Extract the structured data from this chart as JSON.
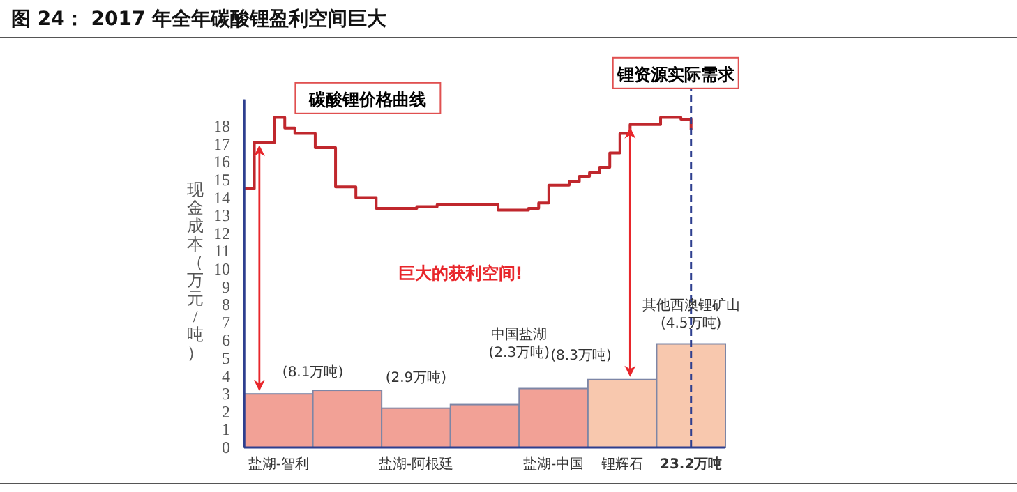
{
  "chart_data": [
    {
      "type": "bar",
      "title": "图 24： 2017 年全年碳酸锂盈利空间巨大",
      "ylabel": "现金成本（万元/吨）",
      "categories": [
        "盐湖-智利",
        null,
        "盐湖-阿根廷",
        null,
        "盐湖-中国",
        "锂辉石",
        "23.2万吨"
      ],
      "values": [
        3.0,
        3.2,
        2.2,
        2.4,
        3.3,
        3.8,
        5.8
      ],
      "colors": [
        "#f2a196",
        "#f2a196",
        "#f2a196",
        "#f2a196",
        "#f2a196",
        "#f8c8ae",
        "#f8c8ae"
      ],
      "ylim": [
        0,
        19.5
      ],
      "yticks": [
        0,
        1,
        2,
        3,
        4,
        5,
        6,
        7,
        8,
        9,
        10,
        11,
        12,
        13,
        14,
        15,
        16,
        17,
        18
      ],
      "ref_lines": [
        {
          "axis": "x",
          "value": "23.2万吨",
          "label": "锂资源实际需求",
          "color": "#2e3f8f",
          "line_style": "dashed"
        }
      ],
      "annotations": [
        "(8.1万吨)",
        "(2.9万吨)",
        "中国盐湖",
        "(2.3万吨)",
        "(8.3万吨)",
        "其他西澳锂矿山",
        "(4.5万吨)",
        "巨大的获利空间!"
      ]
    },
    {
      "type": "step",
      "categories": [
        null,
        null,
        null,
        null,
        null,
        null,
        null,
        null,
        null,
        null,
        null,
        null,
        null,
        null,
        null,
        null,
        null,
        null,
        null,
        null,
        null,
        null,
        null,
        null,
        null,
        null,
        null,
        null,
        null,
        null,
        null,
        null,
        null,
        null,
        null,
        null,
        null,
        null,
        null,
        null,
        null,
        null,
        null,
        null,
        null
      ],
      "ylim": [
        0,
        19.5
      ],
      "tick_labels": false,
      "series": [
        {
          "name": "碳酸锂价格曲线",
          "color": "#c0272d",
          "values": [
            14.5,
            17.1,
            17.1,
            18.5,
            17.9,
            17.6,
            17.6,
            16.8,
            16.8,
            14.6,
            14.6,
            14.0,
            14.0,
            13.4,
            13.4,
            13.4,
            13.4,
            13.5,
            13.5,
            13.6,
            13.6,
            13.6,
            13.6,
            13.6,
            13.6,
            13.3,
            13.3,
            13.3,
            13.4,
            13.7,
            14.7,
            14.7,
            14.9,
            15.2,
            15.4,
            15.7,
            16.5,
            17.6,
            18.1,
            18.1,
            18.1,
            18.5,
            18.5,
            18.4,
            17.8
          ]
        }
      ]
    }
  ]
}
